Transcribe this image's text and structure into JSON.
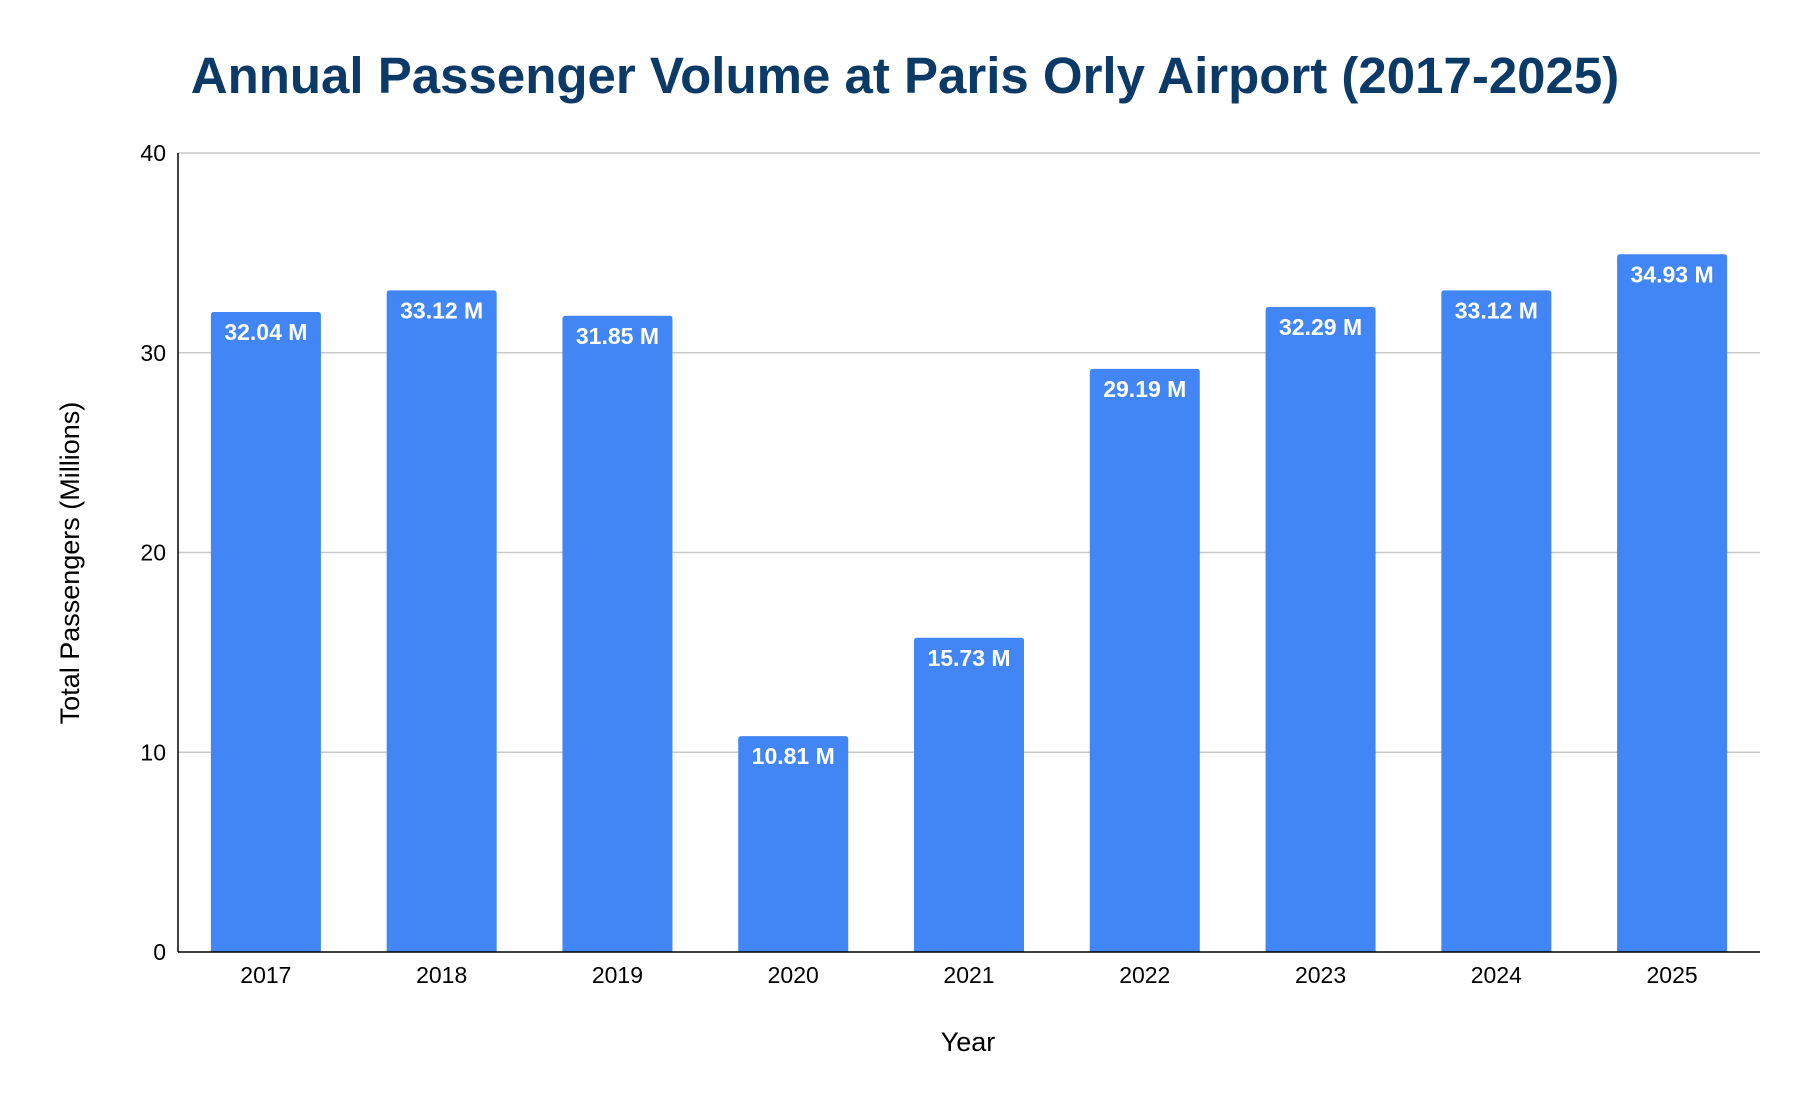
{
  "chart_data": {
    "type": "bar",
    "title": "Annual Passenger Volume at Paris Orly Airport (2017-2025)",
    "xlabel": "Year",
    "ylabel": "Total Passengers (Millions)",
    "categories": [
      "2017",
      "2018",
      "2019",
      "2020",
      "2021",
      "2022",
      "2023",
      "2024",
      "2025"
    ],
    "values": [
      32.04,
      33.12,
      31.85,
      10.81,
      15.73,
      29.19,
      32.29,
      33.12,
      34.93
    ],
    "data_labels": [
      "32.04 M",
      "33.12 M",
      "31.85 M",
      "10.81 M",
      "15.73 M",
      "29.19 M",
      "32.29 M",
      "33.12 M",
      "34.93 M"
    ],
    "ylim": [
      0,
      40
    ],
    "yticks": [
      0,
      10,
      20,
      30,
      40
    ],
    "grid": true,
    "legend": "none",
    "colors": {
      "bar": "#4285f4",
      "title": "#0b3a66",
      "grid": "#c8c8c8",
      "axis": "#000000",
      "data_label": "#ffffff"
    }
  }
}
